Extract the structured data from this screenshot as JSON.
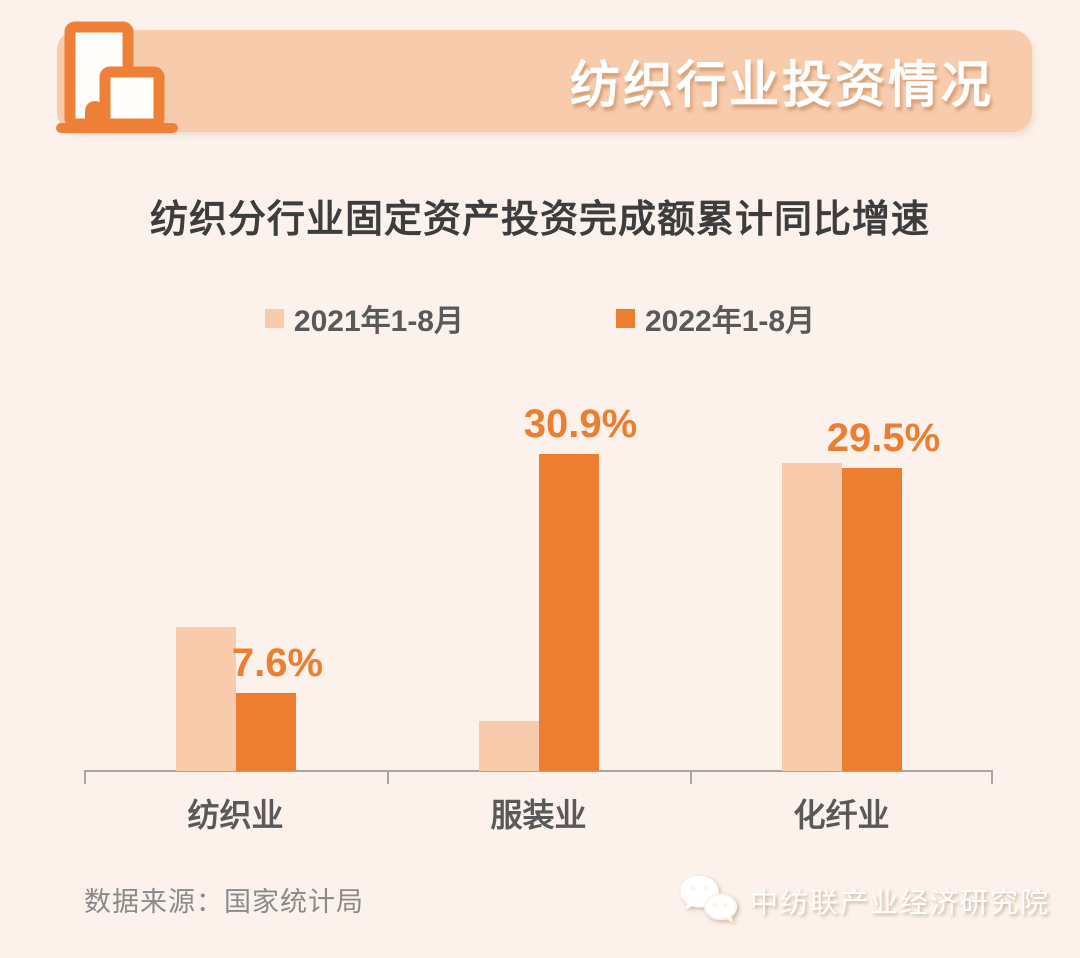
{
  "header": {
    "banner_title": "纺织行业投资情况"
  },
  "chart_data": {
    "type": "bar",
    "title": "纺织分行业固定资产投资完成额累计同比增速",
    "categories": [
      "纺织业",
      "服装业",
      "化纤业"
    ],
    "series": [
      {
        "name": "2021年1-8月",
        "color": "#F8CBAD",
        "values": [
          14.0,
          4.9,
          30.0
        ],
        "data_labels": null
      },
      {
        "name": "2022年1-8月",
        "color": "#ED7D31",
        "values": [
          7.6,
          30.9,
          29.5
        ],
        "data_labels": [
          "7.6%",
          "30.9%",
          "29.5%"
        ]
      }
    ],
    "value_unit": "%",
    "ylim": [
      0,
      32
    ],
    "grid": false,
    "legend_position": "top-center",
    "data_label_color": "#ED7D31"
  },
  "footer": {
    "source": "数据来源：国家统计局",
    "watermark": "中纺联产业经济研究院"
  },
  "colors": {
    "background": "#FCF2EB",
    "banner": "#F8CBAD",
    "accent_orange": "#ED7D31",
    "light_series": "#F8CBAD",
    "axis": "#A6A6A6",
    "title_text": "#3D3D3D",
    "label_text": "#595959",
    "source_text": "#8A8A8A"
  }
}
